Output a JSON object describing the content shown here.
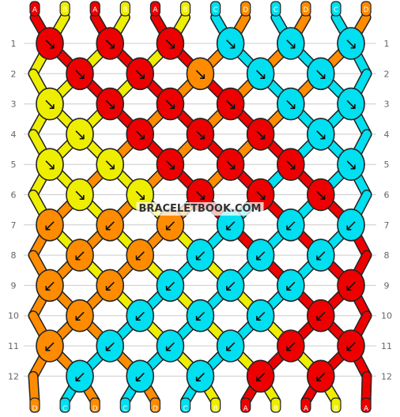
{
  "watermark": "BRACELETBOOK.COM",
  "colors": {
    "A": "#ee0000",
    "B": "#eeee00",
    "C": "#00e0f0",
    "D": "#ff8c00"
  },
  "top_strings": [
    "A",
    "B",
    "A",
    "B",
    "A",
    "B",
    "C",
    "D",
    "C",
    "D",
    "C",
    "D"
  ],
  "bottom_strings": [
    "D",
    "C",
    "D",
    "C",
    "D",
    "C",
    "B",
    "A",
    "B",
    "A",
    "B",
    "A"
  ],
  "row_labels": [
    "1",
    "2",
    "3",
    "4",
    "5",
    "6",
    "7",
    "8",
    "9",
    "10",
    "11",
    "12"
  ],
  "knots": [
    [
      {
        "c": "A",
        "d": "↘"
      },
      {
        "c": "A",
        "d": "↘"
      },
      {
        "c": "A",
        "d": "↘"
      },
      {
        "c": "C",
        "d": "↘"
      },
      {
        "c": "C",
        "d": "↘"
      },
      {
        "c": "C",
        "d": "↘"
      }
    ],
    [
      {
        "c": "A",
        "d": "↘"
      },
      {
        "c": "A",
        "d": "↘"
      },
      {
        "c": "D",
        "d": "↘"
      },
      {
        "c": "C",
        "d": "↘"
      },
      {
        "c": "C",
        "d": "↘"
      }
    ],
    [
      {
        "c": "B",
        "d": "↘"
      },
      {
        "c": "A",
        "d": "↘"
      },
      {
        "c": "A",
        "d": "↘"
      },
      {
        "c": "A",
        "d": "↘"
      },
      {
        "c": "C",
        "d": "↘"
      },
      {
        "c": "C",
        "d": "↘"
      }
    ],
    [
      {
        "c": "B",
        "d": "↘"
      },
      {
        "c": "A",
        "d": "↘"
      },
      {
        "c": "A",
        "d": "↘"
      },
      {
        "c": "A",
        "d": "↘"
      },
      {
        "c": "C",
        "d": "↘"
      }
    ],
    [
      {
        "c": "B",
        "d": "↘"
      },
      {
        "c": "B",
        "d": "↘"
      },
      {
        "c": "A",
        "d": "↘"
      },
      {
        "c": "A",
        "d": "↘"
      },
      {
        "c": "A",
        "d": "↘"
      },
      {
        "c": "C",
        "d": "↘"
      }
    ],
    [
      {
        "c": "B",
        "d": "↘"
      },
      {
        "c": "B",
        "d": "↘"
      },
      {
        "c": "A",
        "d": "↘"
      },
      {
        "c": "A",
        "d": "↘"
      },
      {
        "c": "A",
        "d": "↘"
      }
    ],
    [
      {
        "c": "D",
        "d": "↙"
      },
      {
        "c": "D",
        "d": "↙"
      },
      {
        "c": "D",
        "d": "↙"
      },
      {
        "c": "C",
        "d": "↙"
      },
      {
        "c": "C",
        "d": "↙"
      },
      {
        "c": "C",
        "d": "↙"
      }
    ],
    [
      {
        "c": "D",
        "d": "↙"
      },
      {
        "c": "D",
        "d": "↙"
      },
      {
        "c": "C",
        "d": "↙"
      },
      {
        "c": "C",
        "d": "↙"
      },
      {
        "c": "C",
        "d": "↙"
      }
    ],
    [
      {
        "c": "D",
        "d": "↙"
      },
      {
        "c": "D",
        "d": "↙"
      },
      {
        "c": "C",
        "d": "↙"
      },
      {
        "c": "C",
        "d": "↙"
      },
      {
        "c": "C",
        "d": "↙"
      },
      {
        "c": "A",
        "d": "↙"
      }
    ],
    [
      {
        "c": "D",
        "d": "↙"
      },
      {
        "c": "C",
        "d": "↙"
      },
      {
        "c": "C",
        "d": "↙"
      },
      {
        "c": "C",
        "d": "↙"
      },
      {
        "c": "A",
        "d": "↙"
      }
    ],
    [
      {
        "c": "D",
        "d": "↙"
      },
      {
        "c": "C",
        "d": "↙"
      },
      {
        "c": "C",
        "d": "↙"
      },
      {
        "c": "C",
        "d": "↙"
      },
      {
        "c": "A",
        "d": "↙"
      },
      {
        "c": "A",
        "d": "↙"
      }
    ],
    [
      {
        "c": "C",
        "d": "↙"
      },
      {
        "c": "C",
        "d": "↙"
      },
      {
        "c": "C",
        "d": "↙"
      },
      {
        "c": "A",
        "d": "↙"
      },
      {
        "c": "A",
        "d": "↙"
      }
    ]
  ]
}
